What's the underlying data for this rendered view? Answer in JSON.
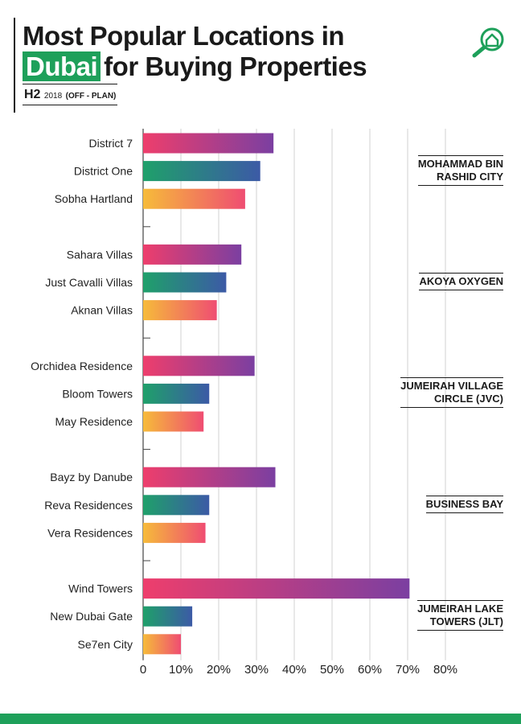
{
  "header": {
    "title_line1": "Most Popular Locations in",
    "title_highlight": "Dubai",
    "title_line2_rest": "for Buying Properties",
    "subtitle_h2": "H2",
    "subtitle_year": "2018",
    "subtitle_plan": "(OFF - PLAN)"
  },
  "logo_icon": "house-magnifier-icon",
  "colors": {
    "brand_green": "#1ea05a",
    "bar_pink_start": "#ee3e6c",
    "bar_purple_end": "#7b3fa1",
    "bar_green_start": "#1fa06a",
    "bar_blue_end": "#3c5aa6",
    "bar_yellow_start": "#f6bb3a",
    "bar_pink_end": "#ef4d72"
  },
  "chart_data": {
    "type": "bar",
    "orientation": "horizontal",
    "xlim": [
      0,
      80
    ],
    "x_ticks": [
      "0",
      "10%",
      "20%",
      "30%",
      "40%",
      "50%",
      "60%",
      "70%",
      "80%"
    ],
    "groups": [
      {
        "name": "MOHAMMAD BIN\nRASHID CITY",
        "categories": [
          "District 7",
          "District One",
          "Sobha Hartland"
        ],
        "values": [
          34.5,
          31,
          27
        ]
      },
      {
        "name": "AKOYA OXYGEN",
        "categories": [
          "Sahara Villas",
          "Just Cavalli Villas",
          "Aknan Villas"
        ],
        "values": [
          26,
          22,
          19.5
        ]
      },
      {
        "name": "JUMEIRAH VILLAGE\nCIRCLE (JVC)",
        "categories": [
          "Orchidea Residence",
          "Bloom Towers",
          "May Residence"
        ],
        "values": [
          29.5,
          17.5,
          16
        ]
      },
      {
        "name": "BUSINESS BAY",
        "categories": [
          "Bayz by Danube",
          "Reva Residences",
          "Vera Residences"
        ],
        "values": [
          35,
          17.5,
          16.5
        ]
      },
      {
        "name": "JUMEIRAH LAKE\nTOWERS (JLT)",
        "categories": [
          "Wind Towers",
          "New Dubai Gate",
          "Se7en City"
        ],
        "values": [
          70.5,
          13,
          10
        ]
      }
    ]
  }
}
